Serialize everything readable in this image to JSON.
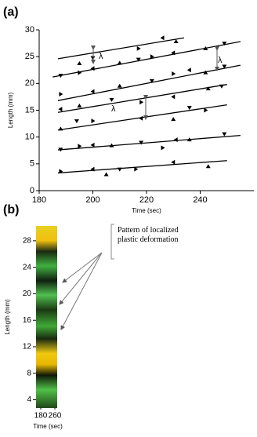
{
  "chart_data": [
    {
      "type": "scatter",
      "panel_label": "(a)",
      "xlabel": "Time (sec)",
      "ylabel": "Length (mm)",
      "xlim": [
        180,
        260
      ],
      "xticks": [
        180,
        200,
        220,
        240
      ],
      "ylim": [
        0,
        30
      ],
      "yticks": [
        0,
        5,
        10,
        15,
        20,
        25,
        30
      ],
      "color": "#000000",
      "annotations": [
        "λ",
        "λ",
        "λ"
      ],
      "series": [
        {
          "x": [
            195,
            200,
            217,
            226,
            231
          ],
          "values": [
            23.7,
            24.8,
            26.5,
            28.5,
            27.8
          ],
          "fit": {
            "x": [
              187,
              234
            ],
            "values": [
              24.6,
              28.5
            ]
          }
        },
        {
          "x": [
            188,
            195,
            200,
            210,
            217,
            222,
            230,
            242,
            249
          ],
          "values": [
            21.5,
            22,
            22.8,
            23.8,
            24.5,
            25,
            25.7,
            26.5,
            27.5
          ],
          "fit": {
            "x": [
              185,
              255
            ],
            "values": [
              21.2,
              27.8
            ]
          }
        },
        {
          "x": [
            188,
            200,
            210,
            222,
            230,
            236,
            242,
            249
          ],
          "values": [
            18,
            18.5,
            19.5,
            20.5,
            21.8,
            22.5,
            22,
            23.2
          ],
          "fit": {
            "x": [
              187,
              255
            ],
            "values": [
              16.8,
              23.4
            ]
          }
        },
        {
          "x": [
            188,
            195,
            207,
            218,
            230,
            243,
            248
          ],
          "values": [
            15.2,
            15.8,
            17,
            16.5,
            17.5,
            19,
            19.5
          ],
          "fit": {
            "x": [
              187,
              250
            ],
            "values": [
              14.6,
              19.8
            ]
          }
        },
        {
          "x": [
            188,
            194,
            200,
            218,
            230,
            236,
            242
          ],
          "values": [
            11.5,
            13,
            13,
            13.5,
            13.3,
            15.5,
            15
          ],
          "fit": {
            "x": [
              187,
              250
            ],
            "values": [
              11.3,
              16
            ]
          }
        },
        {
          "x": [
            188,
            195,
            200,
            207,
            218,
            226,
            231,
            236,
            249
          ],
          "values": [
            7.7,
            8.3,
            8.5,
            8.4,
            9,
            8,
            9.5,
            9.5,
            10.6
          ],
          "fit": {
            "x": [
              187,
              255
            ],
            "values": [
              7.6,
              10.3
            ]
          }
        },
        {
          "x": [
            188,
            200,
            205,
            210,
            216,
            230,
            243
          ],
          "values": [
            3.6,
            4,
            3,
            4,
            4,
            5.3,
            4.5
          ],
          "fit": {
            "x": [
              187,
              250
            ],
            "values": [
              3.3,
              5.6
            ]
          }
        }
      ]
    },
    {
      "type": "heatmap",
      "panel_label": "(b)",
      "xlabel": "Time (sec)",
      "ylabel": "Length (mm)",
      "xlim": [
        180,
        260
      ],
      "xticks": [
        180,
        260
      ],
      "ylim": [
        3,
        30
      ],
      "yticks": [
        4,
        8,
        12,
        16,
        20,
        24,
        28
      ],
      "annotation": "Pattern of localized plastic deformation"
    }
  ]
}
